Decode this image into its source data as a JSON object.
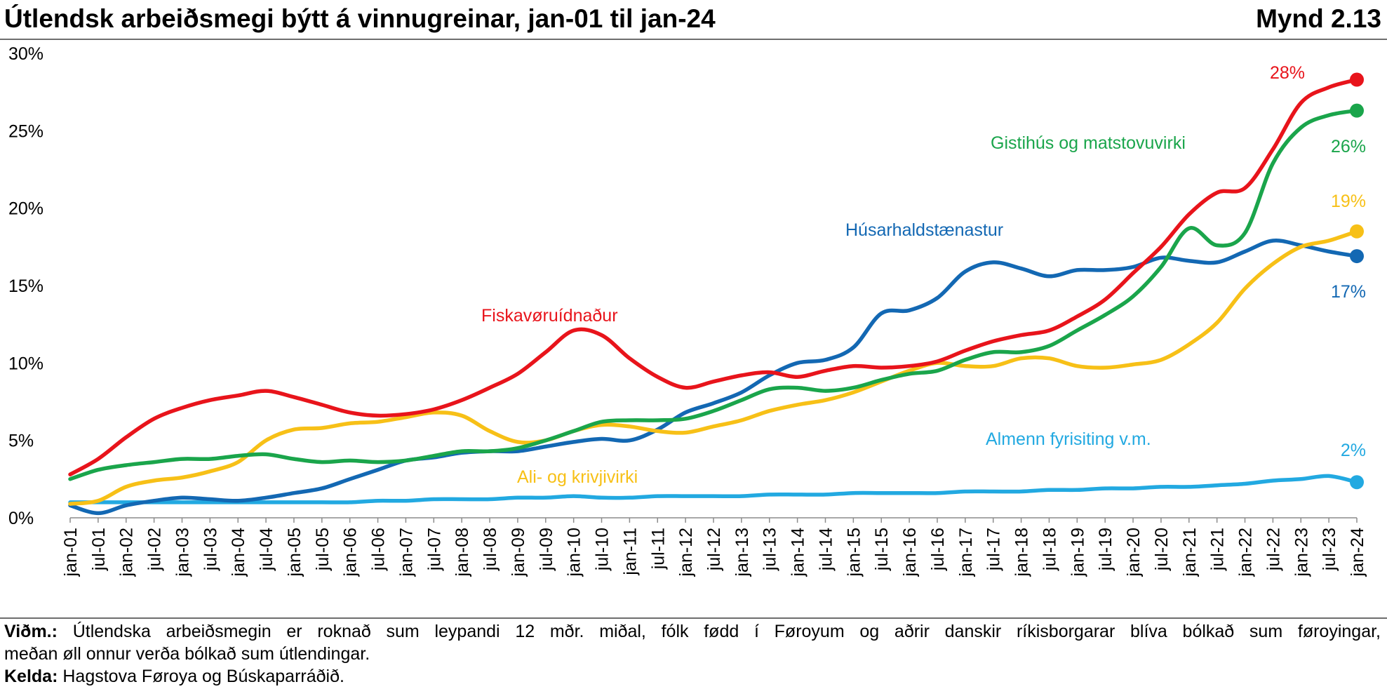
{
  "header": {
    "title": "Útlendsk arbeiðsmegi býtt á vinnugreinar, jan-01 til jan-24",
    "figure_number": "Mynd 2.13"
  },
  "footer": {
    "note_label": "Viðm.:",
    "note_text_line1": "Útlendska arbeiðsmegin er roknað sum leypandi 12 mðr. miðal, fólk fødd í Føroyum og aðrir danskir ríkisborgarar blíva bólkað sum føroyingar,",
    "note_text_line2": "meðan øll onnur verða bólkað sum útlendingar.",
    "source_label": "Kelda:",
    "source_text": "Hagstova Føroya og Búskaparráðið."
  },
  "chart_data": {
    "type": "line",
    "x_start": "jan-01",
    "x_end": "jan-24",
    "x_tick_labels": [
      "jan-01",
      "jul-01",
      "jan-02",
      "jul-02",
      "jan-03",
      "jul-03",
      "jan-04",
      "jul-04",
      "jan-05",
      "jul-05",
      "jan-06",
      "jul-06",
      "jan-07",
      "jul-07",
      "jan-08",
      "jul-08",
      "jan-09",
      "jul-09",
      "jan-10",
      "jul-10",
      "jan-11",
      "jul-11",
      "jan-12",
      "jul-12",
      "jan-13",
      "jul-13",
      "jan-14",
      "jul-14",
      "jan-15",
      "jul-15",
      "jan-16",
      "jul-16",
      "jan-17",
      "jul-17",
      "jan-18",
      "jul-18",
      "jan-19",
      "jul-19",
      "jan-20",
      "jul-20",
      "jan-21",
      "jul-21",
      "jan-22",
      "jul-22",
      "jan-23",
      "jul-23",
      "jan-24"
    ],
    "y_tick_labels": [
      "0%",
      "5%",
      "10%",
      "15%",
      "20%",
      "25%",
      "30%"
    ],
    "y_ticks": [
      0,
      5,
      10,
      15,
      20,
      25,
      30
    ],
    "ylim": [
      0,
      30
    ],
    "grid": false,
    "series": [
      {
        "name": "Fiskavøruídnaður",
        "color": "#e8141b",
        "end_label": "28%",
        "x": [
          "jan-01",
          "jul-01",
          "jan-02",
          "jul-02",
          "jan-03",
          "jul-03",
          "jan-04",
          "jul-04",
          "jan-05",
          "jul-05",
          "jan-06",
          "jul-06",
          "jan-07",
          "jul-07",
          "jan-08",
          "jul-08",
          "jan-09",
          "jul-09",
          "jan-10",
          "jul-10",
          "jan-11",
          "jul-11",
          "jan-12",
          "jul-12",
          "jan-13",
          "jul-13",
          "jan-14",
          "jul-14",
          "jan-15",
          "jul-15",
          "jan-16",
          "jul-16",
          "jan-17",
          "jul-17",
          "jan-18",
          "jul-18",
          "jan-19",
          "jul-19",
          "jan-20",
          "jul-20",
          "jan-21",
          "jul-21",
          "jan-22",
          "jul-22",
          "jan-23",
          "jul-23",
          "jan-24"
        ],
        "values": [
          2.8,
          3.8,
          5.2,
          6.4,
          7.1,
          7.6,
          7.9,
          8.2,
          7.8,
          7.3,
          6.8,
          6.6,
          6.7,
          7.0,
          7.6,
          8.4,
          9.3,
          10.7,
          12.1,
          11.8,
          10.3,
          9.1,
          8.4,
          8.8,
          9.2,
          9.4,
          9.1,
          9.5,
          9.8,
          9.7,
          9.8,
          10.1,
          10.8,
          11.4,
          11.8,
          12.1,
          13.0,
          14.1,
          15.8,
          17.5,
          19.6,
          21.0,
          21.3,
          23.8,
          26.8,
          27.8,
          28.3
        ]
      },
      {
        "name": "Gistihús og matstovuvirki",
        "color": "#1aa54b",
        "end_label": "26%",
        "x": [
          "jan-01",
          "jul-01",
          "jan-02",
          "jul-02",
          "jan-03",
          "jul-03",
          "jan-04",
          "jul-04",
          "jan-05",
          "jul-05",
          "jan-06",
          "jul-06",
          "jan-07",
          "jul-07",
          "jan-08",
          "jul-08",
          "jan-09",
          "jul-09",
          "jan-10",
          "jul-10",
          "jan-11",
          "jul-11",
          "jan-12",
          "jul-12",
          "jan-13",
          "jul-13",
          "jan-14",
          "jul-14",
          "jan-15",
          "jul-15",
          "jan-16",
          "jul-16",
          "jan-17",
          "jul-17",
          "jan-18",
          "jul-18",
          "jan-19",
          "jul-19",
          "jan-20",
          "jul-20",
          "jan-21",
          "jul-21",
          "jan-22",
          "jul-22",
          "jan-23",
          "jul-23",
          "jan-24"
        ],
        "values": [
          2.5,
          3.1,
          3.4,
          3.6,
          3.8,
          3.8,
          4.0,
          4.1,
          3.8,
          3.6,
          3.7,
          3.6,
          3.7,
          4.0,
          4.3,
          4.3,
          4.5,
          5.0,
          5.6,
          6.2,
          6.3,
          6.3,
          6.4,
          6.9,
          7.6,
          8.3,
          8.4,
          8.2,
          8.4,
          8.9,
          9.3,
          9.5,
          10.2,
          10.7,
          10.7,
          11.1,
          12.1,
          13.1,
          14.3,
          16.2,
          18.7,
          17.6,
          18.4,
          22.9,
          25.2,
          26.0,
          26.3
        ]
      },
      {
        "name": "Ali- og krivjivirki",
        "color": "#f7c017",
        "end_label": "19%",
        "x": [
          "jan-01",
          "jul-01",
          "jan-02",
          "jul-02",
          "jan-03",
          "jul-03",
          "jan-04",
          "jul-04",
          "jan-05",
          "jul-05",
          "jan-06",
          "jul-06",
          "jan-07",
          "jul-07",
          "jan-08",
          "jul-08",
          "jan-09",
          "jul-09",
          "jan-10",
          "jul-10",
          "jan-11",
          "jul-11",
          "jan-12",
          "jul-12",
          "jan-13",
          "jul-13",
          "jan-14",
          "jul-14",
          "jan-15",
          "jul-15",
          "jan-16",
          "jul-16",
          "jan-17",
          "jul-17",
          "jan-18",
          "jul-18",
          "jan-19",
          "jul-19",
          "jan-20",
          "jul-20",
          "jan-21",
          "jul-21",
          "jan-22",
          "jul-22",
          "jan-23",
          "jul-23",
          "jan-24"
        ],
        "values": [
          0.9,
          1.1,
          2.0,
          2.4,
          2.6,
          3.0,
          3.6,
          5.0,
          5.7,
          5.8,
          6.1,
          6.2,
          6.5,
          6.8,
          6.6,
          5.6,
          4.9,
          5.0,
          5.6,
          6.0,
          5.9,
          5.6,
          5.5,
          5.9,
          6.3,
          6.9,
          7.3,
          7.6,
          8.1,
          8.8,
          9.5,
          10.0,
          9.8,
          9.8,
          10.3,
          10.3,
          9.8,
          9.7,
          9.9,
          10.2,
          11.2,
          12.6,
          14.8,
          16.4,
          17.5,
          17.9,
          18.5
        ]
      },
      {
        "name": "Húsarhaldstænastur",
        "color": "#1368b3",
        "end_label": "17%",
        "x": [
          "jan-01",
          "jul-01",
          "jan-02",
          "jul-02",
          "jan-03",
          "jul-03",
          "jan-04",
          "jul-04",
          "jan-05",
          "jul-05",
          "jan-06",
          "jul-06",
          "jan-07",
          "jul-07",
          "jan-08",
          "jul-08",
          "jan-09",
          "jul-09",
          "jan-10",
          "jul-10",
          "jan-11",
          "jul-11",
          "jan-12",
          "jul-12",
          "jan-13",
          "jul-13",
          "jan-14",
          "jul-14",
          "jan-15",
          "jul-15",
          "jan-16",
          "jul-16",
          "jan-17",
          "jul-17",
          "jan-18",
          "jul-18",
          "jan-19",
          "jul-19",
          "jan-20",
          "jul-20",
          "jan-21",
          "jul-21",
          "jan-22",
          "jul-22",
          "jan-23",
          "jul-23",
          "jan-24"
        ],
        "values": [
          0.8,
          0.3,
          0.8,
          1.1,
          1.3,
          1.2,
          1.1,
          1.3,
          1.6,
          1.9,
          2.5,
          3.1,
          3.7,
          3.9,
          4.2,
          4.3,
          4.3,
          4.6,
          4.9,
          5.1,
          5.0,
          5.7,
          6.8,
          7.4,
          8.1,
          9.2,
          10.0,
          10.2,
          11.0,
          13.2,
          13.4,
          14.2,
          15.9,
          16.5,
          16.1,
          15.6,
          16.0,
          16.0,
          16.2,
          16.8,
          16.6,
          16.5,
          17.2,
          17.9,
          17.6,
          17.2,
          16.9
        ]
      },
      {
        "name": "Almenn fyrisiting v.m.",
        "color": "#22a9e1",
        "end_label": "2%",
        "x": [
          "jan-01",
          "jul-01",
          "jan-02",
          "jul-02",
          "jan-03",
          "jul-03",
          "jan-04",
          "jul-04",
          "jan-05",
          "jul-05",
          "jan-06",
          "jul-06",
          "jan-07",
          "jul-07",
          "jan-08",
          "jul-08",
          "jan-09",
          "jul-09",
          "jan-10",
          "jul-10",
          "jan-11",
          "jul-11",
          "jan-12",
          "jul-12",
          "jan-13",
          "jul-13",
          "jan-14",
          "jul-14",
          "jan-15",
          "jul-15",
          "jan-16",
          "jul-16",
          "jan-17",
          "jul-17",
          "jan-18",
          "jul-18",
          "jan-19",
          "jul-19",
          "jan-20",
          "jul-20",
          "jan-21",
          "jul-21",
          "jan-22",
          "jul-22",
          "jan-23",
          "jul-23",
          "jan-24"
        ],
        "values": [
          1.0,
          1.0,
          1.0,
          1.0,
          1.0,
          1.0,
          1.0,
          1.0,
          1.0,
          1.0,
          1.0,
          1.1,
          1.1,
          1.2,
          1.2,
          1.2,
          1.3,
          1.3,
          1.4,
          1.3,
          1.3,
          1.4,
          1.4,
          1.4,
          1.4,
          1.5,
          1.5,
          1.5,
          1.6,
          1.6,
          1.6,
          1.6,
          1.7,
          1.7,
          1.7,
          1.8,
          1.8,
          1.9,
          1.9,
          2.0,
          2.0,
          2.1,
          2.2,
          2.4,
          2.5,
          2.7,
          2.3
        ]
      }
    ]
  }
}
